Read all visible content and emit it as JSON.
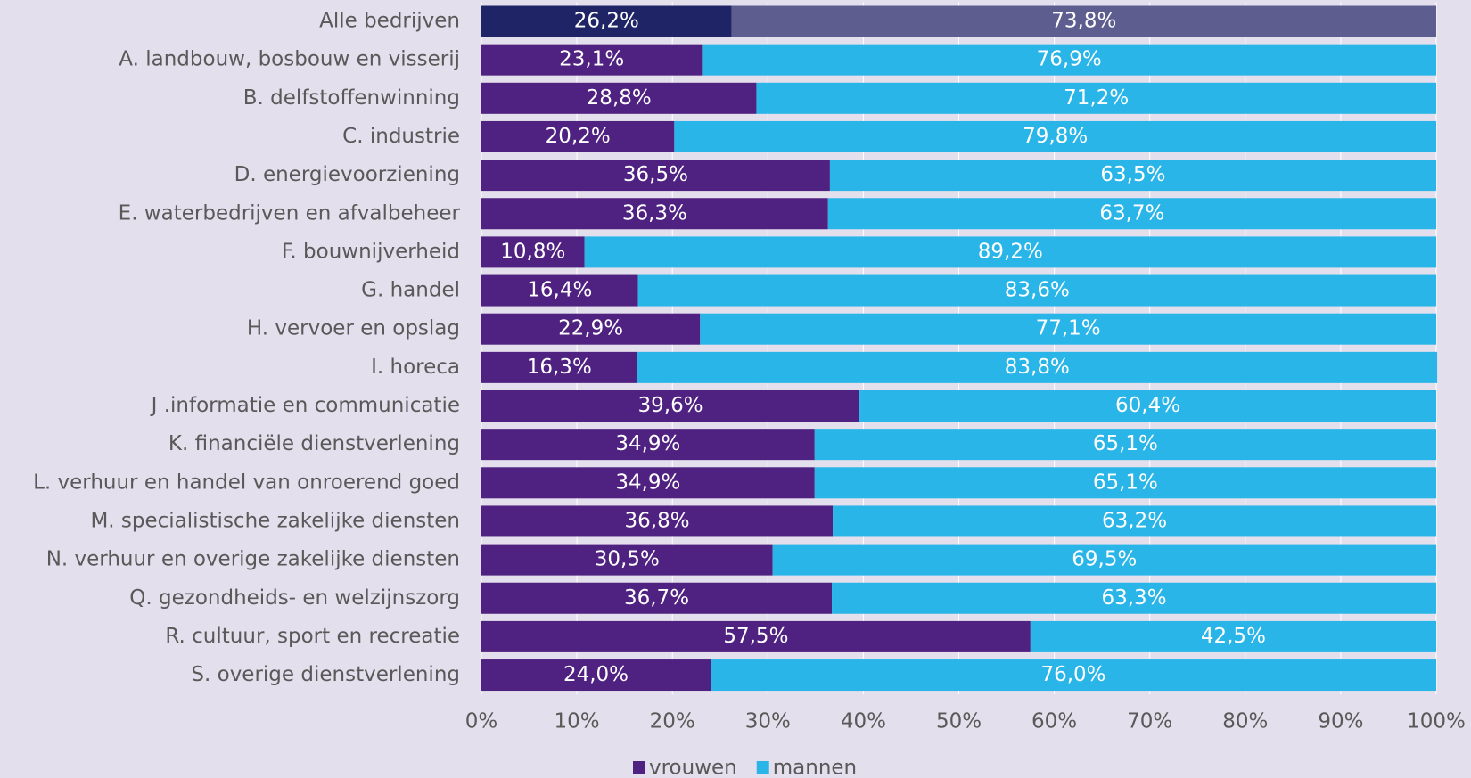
{
  "chart_data": {
    "type": "stacked_bar_horizontal",
    "categories": [
      "Alle bedrijven",
      "A. landbouw, bosbouw en visserij",
      "B. delfstoffenwinning",
      "C. industrie",
      "D. energievoorziening",
      "E. waterbedrijven en afvalbeheer",
      "F. bouwnijverheid",
      "G. handel",
      "H. vervoer en opslag",
      "I. horeca",
      "J .informatie en communicatie",
      "K. financiële dienstverlening",
      "L. verhuur en handel van onroerend goed",
      "M. specialistische zakelijke diensten",
      "N. verhuur en overige zakelijke diensten",
      "Q. gezondheids- en welzijnszorg",
      "R. cultuur, sport en recreatie",
      "S. overige dienstverlening"
    ],
    "series": [
      {
        "name": "vrouwen",
        "color": "#4f2180",
        "colors": [
          "#1f2466",
          "#4f2180",
          "#4f2180",
          "#4f2180",
          "#4f2180",
          "#4f2180",
          "#4f2180",
          "#4f2180",
          "#4f2180",
          "#4f2180",
          "#4f2180",
          "#4f2180",
          "#4f2180",
          "#4f2180",
          "#4f2180",
          "#4f2180",
          "#4f2180",
          "#4f2180"
        ],
        "values": [
          26.2,
          23.1,
          28.8,
          20.2,
          36.5,
          36.3,
          10.8,
          16.4,
          22.9,
          16.3,
          39.6,
          34.9,
          34.9,
          36.8,
          30.5,
          36.7,
          57.5,
          24.0
        ],
        "value_labels": [
          "26,2%",
          "23,1%",
          "28,8%",
          "20,2%",
          "36,5%",
          "36,3%",
          "10,8%",
          "16,4%",
          "22,9%",
          "16,3%",
          "39,6%",
          "34,9%",
          "34,9%",
          "36,8%",
          "30,5%",
          "36,7%",
          "57,5%",
          "24,0%"
        ]
      },
      {
        "name": "mannen",
        "color": "#29b5e8",
        "colors": [
          "#5d5d8f",
          "#29b5e8",
          "#29b5e8",
          "#29b5e8",
          "#29b5e8",
          "#29b5e8",
          "#29b5e8",
          "#29b5e8",
          "#29b5e8",
          "#29b5e8",
          "#29b5e8",
          "#29b5e8",
          "#29b5e8",
          "#29b5e8",
          "#29b5e8",
          "#29b5e8",
          "#29b5e8",
          "#29b5e8"
        ],
        "values": [
          73.8,
          76.9,
          71.2,
          79.8,
          63.5,
          63.7,
          89.2,
          83.6,
          77.1,
          83.8,
          60.4,
          65.1,
          65.1,
          63.2,
          69.5,
          63.3,
          42.5,
          76.0
        ],
        "value_labels": [
          "73,8%",
          "76,9%",
          "71,2%",
          "79,8%",
          "63,5%",
          "63,7%",
          "89,2%",
          "83,6%",
          "77,1%",
          "83,8%",
          "60,4%",
          "65,1%",
          "65,1%",
          "63,2%",
          "69,5%",
          "63,3%",
          "42,5%",
          "76,0%"
        ]
      }
    ],
    "xlim": [
      0,
      100
    ],
    "xticks": [
      {
        "value": 0,
        "label": "0%"
      },
      {
        "value": 10,
        "label": "10%"
      },
      {
        "value": 20,
        "label": "20%"
      },
      {
        "value": 30,
        "label": "30%"
      },
      {
        "value": 40,
        "label": "40%"
      },
      {
        "value": 50,
        "label": "50%"
      },
      {
        "value": 60,
        "label": "60%"
      },
      {
        "value": 70,
        "label": "70%"
      },
      {
        "value": 80,
        "label": "80%"
      },
      {
        "value": 90,
        "label": "90%"
      },
      {
        "value": 100,
        "label": "100%"
      }
    ],
    "grid": true,
    "legend": "bottom"
  }
}
